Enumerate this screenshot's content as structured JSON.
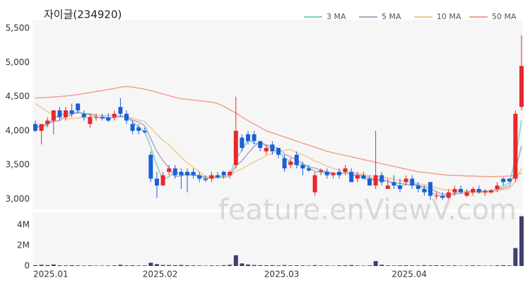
{
  "chart_data": [
    {
      "type": "candlestick",
      "title": "자이글(234920)",
      "categories": [
        "2025.01",
        null,
        null,
        null,
        null,
        null,
        null,
        null,
        null,
        null,
        null,
        null,
        null,
        null,
        null,
        null,
        null,
        null,
        "2025.02",
        null,
        null,
        null,
        null,
        null,
        null,
        null,
        null,
        null,
        null,
        null,
        null,
        null,
        null,
        null,
        null,
        null,
        null,
        null,
        "2025.03",
        null,
        null,
        null,
        null,
        null,
        null,
        null,
        null,
        null,
        null,
        null,
        null,
        null,
        null,
        null,
        null,
        null,
        null,
        null,
        null,
        "2025.04",
        null,
        null,
        null,
        null,
        null,
        null,
        null,
        null,
        null,
        null,
        null,
        null,
        null,
        null,
        null,
        null,
        null,
        null,
        null,
        null,
        null
      ],
      "open": [
        4100,
        4000,
        4100,
        4150,
        4300,
        4200,
        4300,
        4400,
        4250,
        4100,
        4200,
        4200,
        4200,
        4200,
        4350,
        4250,
        4100,
        4050,
        4000,
        3650,
        3300,
        3200,
        3400,
        3450,
        3400,
        3400,
        3400,
        3350,
        3300,
        3300,
        3350,
        3400,
        3350,
        3500,
        3900,
        3950,
        3950,
        3850,
        3700,
        3800,
        3750,
        3600,
        3500,
        3650,
        3500,
        3450,
        3100,
        3400,
        3400,
        3350,
        3400,
        3400,
        3400,
        3300,
        3350,
        3300,
        3200,
        3350,
        3150,
        3250,
        3200,
        3250,
        3300,
        3200,
        3150,
        3250,
        3050,
        3050,
        3020,
        3100,
        3150,
        3050,
        3100,
        3150,
        3100,
        3100,
        3150,
        3300,
        3300,
        3300,
        4350
      ],
      "high": [
        4150,
        4100,
        4200,
        4300,
        4350,
        4350,
        4400,
        4400,
        4300,
        4250,
        4250,
        4250,
        4260,
        4300,
        4480,
        4300,
        4150,
        4100,
        4050,
        3700,
        3400,
        3400,
        3500,
        3500,
        3450,
        3450,
        3450,
        3400,
        3350,
        3400,
        3400,
        3420,
        3420,
        4500,
        3950,
        4000,
        4000,
        3850,
        3800,
        3850,
        3750,
        3650,
        3600,
        3700,
        3550,
        3500,
        3400,
        3450,
        3450,
        3400,
        3450,
        3500,
        3450,
        3400,
        3400,
        3350,
        4000,
        3400,
        3300,
        3350,
        3300,
        3350,
        3350,
        3250,
        3200,
        3250,
        3100,
        3100,
        3150,
        3200,
        3200,
        3150,
        3180,
        3200,
        3150,
        3150,
        3250,
        3320,
        3300,
        4300,
        5400
      ],
      "low": [
        3980,
        3800,
        4050,
        3950,
        4150,
        4150,
        4200,
        4250,
        4150,
        4050,
        4150,
        4150,
        4130,
        4150,
        4200,
        4100,
        3950,
        3950,
        3960,
        3250,
        3020,
        3200,
        3350,
        3300,
        3150,
        3100,
        3300,
        3250,
        3250,
        3250,
        3300,
        3300,
        3300,
        3450,
        3700,
        3800,
        3800,
        3700,
        3650,
        3650,
        3600,
        3400,
        3450,
        3450,
        3350,
        3400,
        3050,
        3350,
        3300,
        3300,
        3300,
        3350,
        3250,
        3250,
        3300,
        3200,
        3150,
        3200,
        3150,
        3150,
        3100,
        3200,
        3150,
        3100,
        3050,
        2990,
        3000,
        2990,
        3000,
        3050,
        3080,
        3030,
        3050,
        3080,
        3050,
        3080,
        3100,
        3200,
        3250,
        3250,
        4300
      ],
      "close": [
        4000,
        4100,
        4150,
        4300,
        4200,
        4300,
        4250,
        4300,
        4200,
        4200,
        4200,
        4180,
        4150,
        4250,
        4250,
        4150,
        4000,
        4000,
        3980,
        3300,
        3200,
        3350,
        3450,
        3350,
        3350,
        3350,
        3350,
        3300,
        3280,
        3350,
        3320,
        3350,
        3400,
        4000,
        3750,
        3850,
        3850,
        3750,
        3750,
        3700,
        3650,
        3450,
        3550,
        3500,
        3450,
        3420,
        3350,
        3420,
        3350,
        3380,
        3350,
        3450,
        3250,
        3350,
        3300,
        3200,
        3350,
        3250,
        3200,
        3200,
        3150,
        3300,
        3200,
        3150,
        3100,
        3050,
        3050,
        3020,
        3100,
        3150,
        3100,
        3100,
        3150,
        3100,
        3120,
        3130,
        3200,
        3250,
        3260,
        4250,
        4950
      ],
      "up_color": "#e8272b",
      "down_color": "#1b5fd9",
      "series": [
        {
          "name": "3 MA",
          "color": "#7fd0c8",
          "values": [
            4050,
            4060,
            4083,
            4183,
            4217,
            4267,
            4250,
            4283,
            4250,
            4233,
            4200,
            4193,
            4177,
            4193,
            4217,
            4217,
            4133,
            4050,
            3993,
            3760,
            3493,
            3283,
            3333,
            3383,
            3383,
            3350,
            3350,
            3333,
            3310,
            3310,
            3317,
            3340,
            3357,
            3583,
            3717,
            3867,
            3817,
            3817,
            3783,
            3733,
            3700,
            3600,
            3550,
            3500,
            3500,
            3457,
            3407,
            3397,
            3373,
            3383,
            3360,
            3393,
            3350,
            3350,
            3300,
            3283,
            3283,
            3267,
            3267,
            3217,
            3183,
            3217,
            3217,
            3217,
            3150,
            3100,
            3067,
            3040,
            3057,
            3090,
            3117,
            3117,
            3117,
            3117,
            3123,
            3117,
            3150,
            3193,
            3237,
            3587,
            4153
          ]
        },
        {
          "name": "5 MA",
          "color": "#b3a2c8",
          "values": [
            4050,
            4080,
            4100,
            4140,
            4150,
            4210,
            4240,
            4270,
            4250,
            4250,
            4230,
            4216,
            4186,
            4196,
            4206,
            4196,
            4160,
            4130,
            4076,
            3886,
            3696,
            3566,
            3456,
            3330,
            3340,
            3370,
            3370,
            3340,
            3326,
            3326,
            3320,
            3320,
            3340,
            3484,
            3564,
            3670,
            3770,
            3840,
            3790,
            3780,
            3740,
            3660,
            3620,
            3570,
            3520,
            3474,
            3454,
            3428,
            3398,
            3384,
            3370,
            3390,
            3356,
            3356,
            3340,
            3310,
            3290,
            3290,
            3260,
            3240,
            3230,
            3220,
            3210,
            3200,
            3180,
            3160,
            3110,
            3074,
            3064,
            3074,
            3084,
            3094,
            3120,
            3120,
            3114,
            3120,
            3140,
            3160,
            3192,
            3418,
            3782
          ]
        },
        {
          "name": "10 MA",
          "color": "#f3c792",
          "values": [
            4400,
            4340,
            4280,
            4230,
            4200,
            4180,
            4180,
            4190,
            4200,
            4200,
            4220,
            4228,
            4228,
            4223,
            4228,
            4213,
            4188,
            4158,
            4136,
            4046,
            3946,
            3863,
            3793,
            3703,
            3613,
            3533,
            3468,
            3398,
            3328,
            3333,
            3345,
            3345,
            3340,
            3405,
            3445,
            3495,
            3545,
            3590,
            3637,
            3672,
            3705,
            3715,
            3730,
            3680,
            3650,
            3607,
            3557,
            3524,
            3484,
            3452,
            3422,
            3422,
            3392,
            3377,
            3362,
            3340,
            3340,
            3323,
            3308,
            3290,
            3270,
            3255,
            3250,
            3230,
            3210,
            3195,
            3165,
            3142,
            3132,
            3127,
            3122,
            3102,
            3097,
            3092,
            3094,
            3102,
            3117,
            3140,
            3156,
            3266,
            3451
          ]
        },
        {
          "name": "50 MA",
          "color": "#f4a090",
          "values": [
            4480,
            4485,
            4490,
            4495,
            4500,
            4510,
            4520,
            4530,
            4545,
            4560,
            4575,
            4590,
            4605,
            4620,
            4640,
            4650,
            4640,
            4625,
            4610,
            4590,
            4565,
            4540,
            4515,
            4490,
            4470,
            4460,
            4450,
            4440,
            4430,
            4420,
            4400,
            4360,
            4310,
            4260,
            4200,
            4150,
            4100,
            4050,
            4000,
            3970,
            3940,
            3910,
            3880,
            3850,
            3820,
            3790,
            3760,
            3730,
            3700,
            3680,
            3660,
            3640,
            3620,
            3600,
            3580,
            3560,
            3540,
            3520,
            3500,
            3480,
            3460,
            3440,
            3420,
            3400,
            3390,
            3380,
            3370,
            3360,
            3350,
            3350,
            3345,
            3340,
            3340,
            3335,
            3330,
            3330,
            3330,
            3335,
            3340,
            3355,
            3380
          ]
        }
      ],
      "ylim": [
        2850,
        5625
      ],
      "yticks": [
        {
          "value": 3000,
          "label": "3,000"
        },
        {
          "value": 3500,
          "label": "3,500"
        },
        {
          "value": 4000,
          "label": "4,000"
        },
        {
          "value": 4500,
          "label": "4,500"
        },
        {
          "value": 5000,
          "label": "5,000"
        },
        {
          "value": 5500,
          "label": "5,500"
        }
      ],
      "grid": false,
      "legend": "top-right",
      "watermark": "feature.enViewV.com"
    },
    {
      "type": "bar",
      "color": "#3e3f6d",
      "values": [
        80000,
        120000,
        90000,
        150000,
        70000,
        60000,
        80000,
        60000,
        50000,
        60000,
        40000,
        40000,
        50000,
        60000,
        120000,
        60000,
        70000,
        50000,
        60000,
        320000,
        180000,
        100000,
        90000,
        80000,
        100000,
        70000,
        60000,
        50000,
        40000,
        60000,
        50000,
        80000,
        120000,
        1050000,
        250000,
        150000,
        100000,
        80000,
        70000,
        80000,
        60000,
        90000,
        60000,
        70000,
        60000,
        50000,
        80000,
        50000,
        50000,
        40000,
        60000,
        70000,
        90000,
        50000,
        40000,
        60000,
        480000,
        120000,
        60000,
        50000,
        60000,
        70000,
        60000,
        50000,
        80000,
        60000,
        70000,
        60000,
        50000,
        60000,
        40000,
        50000,
        60000,
        50000,
        40000,
        40000,
        70000,
        80000,
        60000,
        1750000,
        4850000
      ],
      "ylim": [
        0,
        5240000
      ],
      "yticks": [
        0,
        {
          "value": 2000000,
          "label": "2M"
        },
        {
          "value": 4000000,
          "label": "4M"
        }
      ],
      "grid": false
    }
  ]
}
